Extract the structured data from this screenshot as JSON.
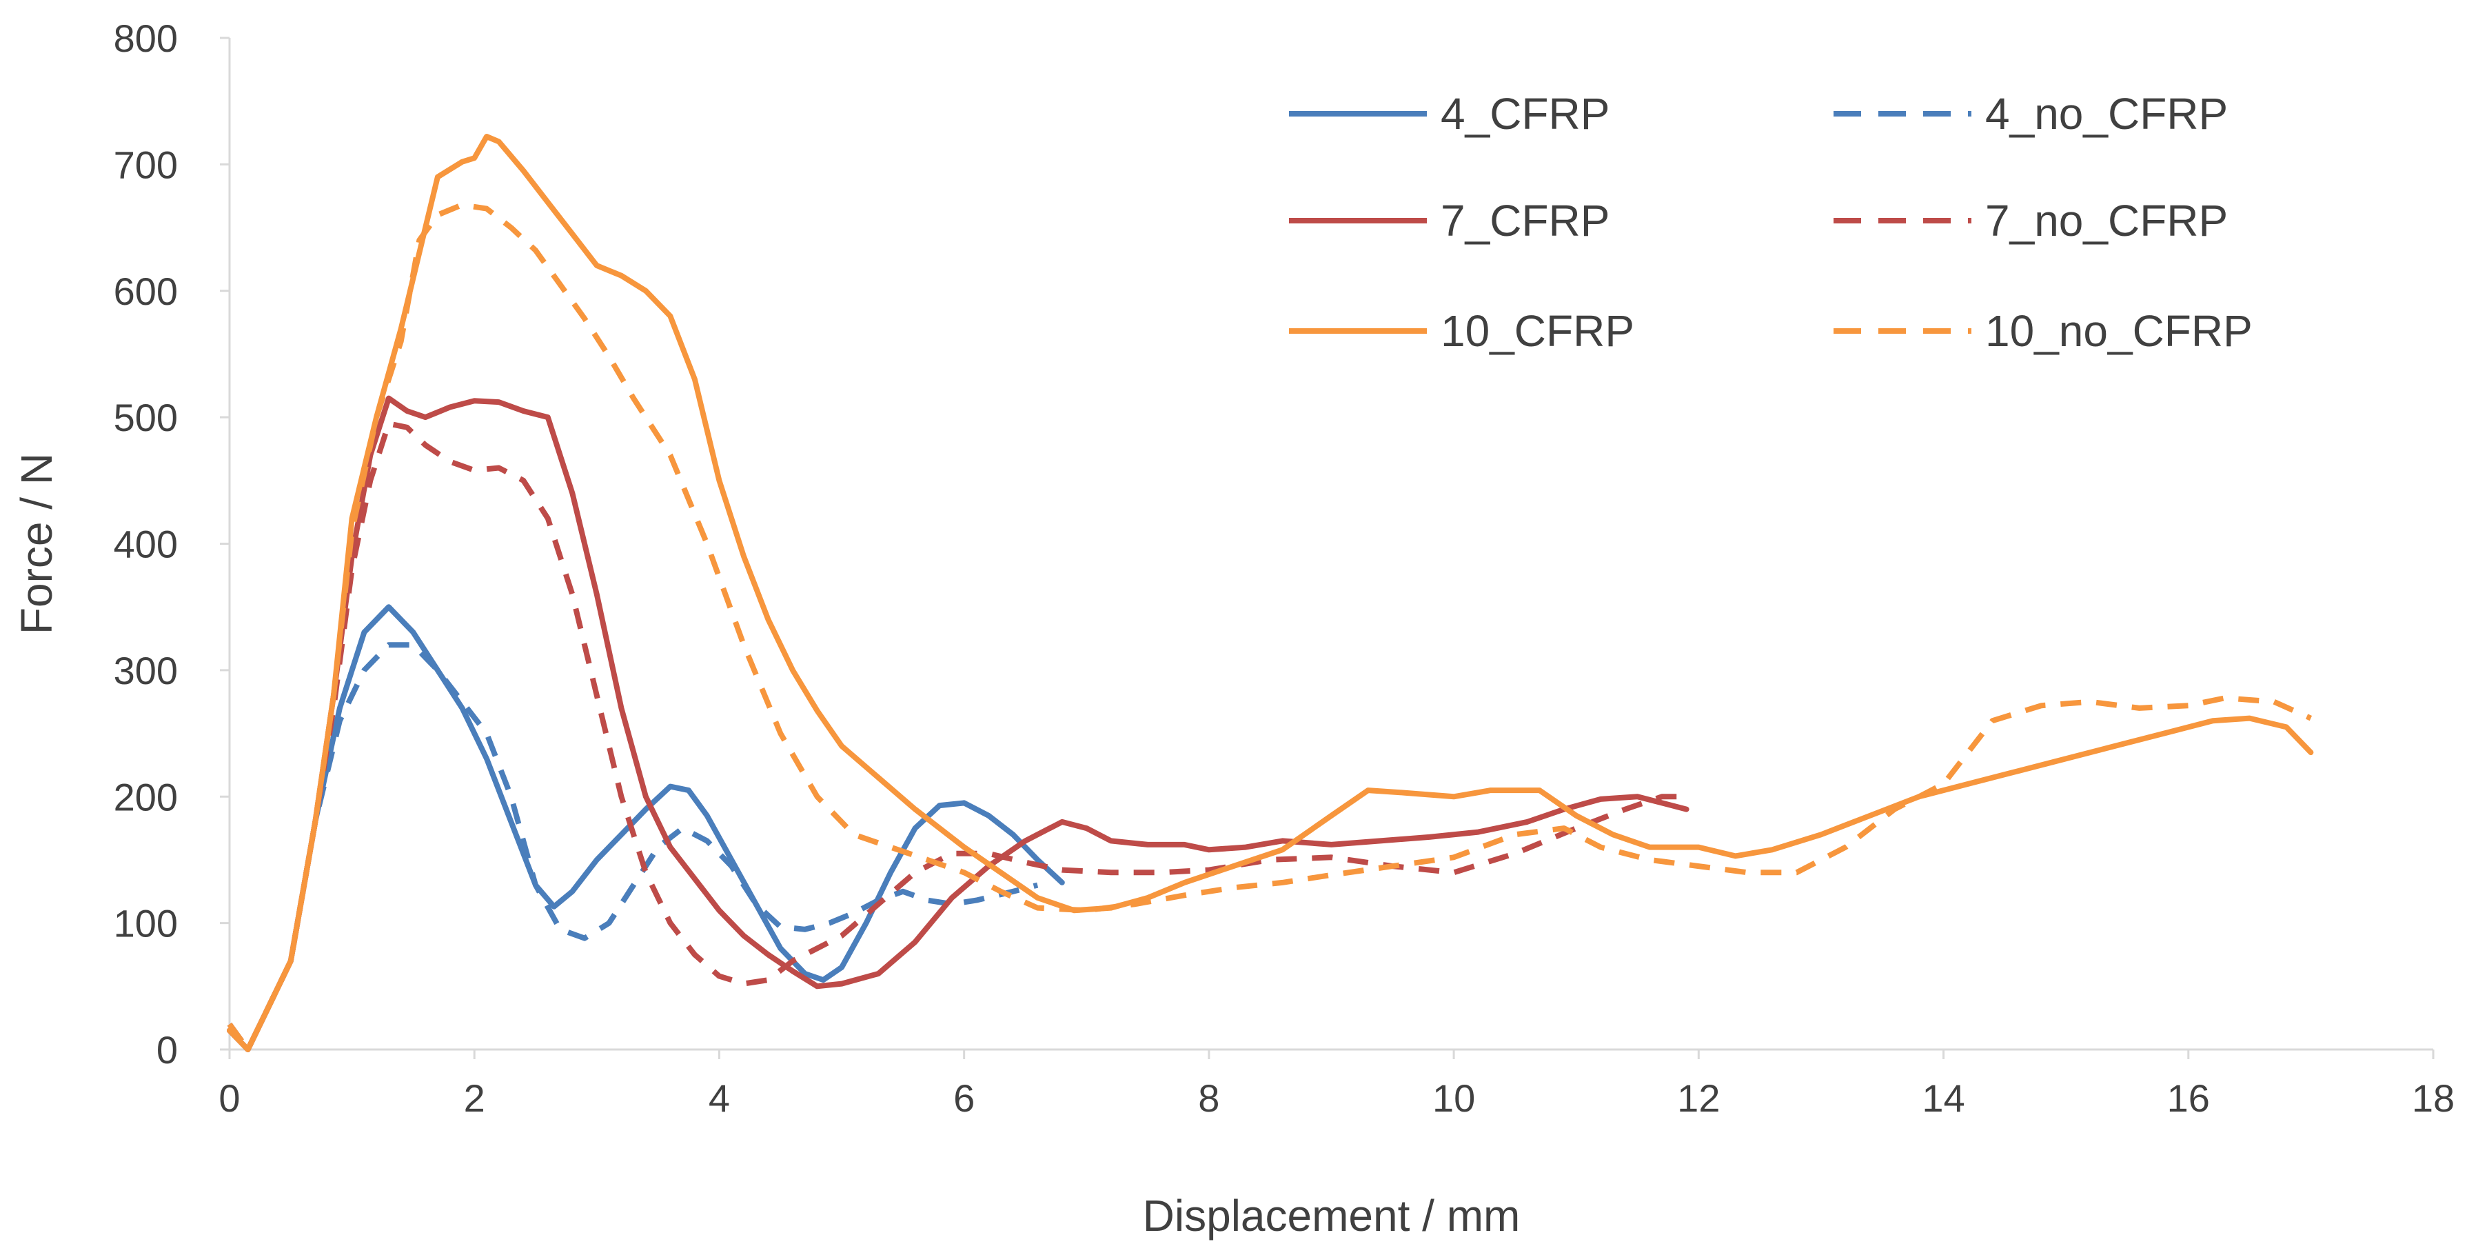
{
  "chart_data": {
    "type": "line",
    "title": "",
    "xlabel": "Displacement / mm",
    "ylabel": "Force / N",
    "xlim": [
      0,
      18
    ],
    "ylim": [
      0,
      800
    ],
    "x_ticks": [
      0,
      2,
      4,
      6,
      8,
      10,
      12,
      14,
      16,
      18
    ],
    "y_ticks": [
      0,
      100,
      200,
      300,
      400,
      500,
      600,
      700,
      800
    ],
    "grid": false,
    "legend_position": "top-right",
    "legend_columns": 2,
    "series": [
      {
        "name": "4_CFRP",
        "color": "#4a7ebb",
        "dash": "solid",
        "points": [
          [
            0,
            15
          ],
          [
            0.15,
            0
          ],
          [
            0.3,
            30
          ],
          [
            0.5,
            70
          ],
          [
            0.7,
            180
          ],
          [
            0.9,
            270
          ],
          [
            1.1,
            330
          ],
          [
            1.3,
            350
          ],
          [
            1.5,
            330
          ],
          [
            1.7,
            300
          ],
          [
            1.9,
            270
          ],
          [
            2.1,
            230
          ],
          [
            2.3,
            180
          ],
          [
            2.5,
            130
          ],
          [
            2.65,
            113
          ],
          [
            2.8,
            125
          ],
          [
            3.0,
            150
          ],
          [
            3.2,
            170
          ],
          [
            3.4,
            190
          ],
          [
            3.6,
            208
          ],
          [
            3.75,
            205
          ],
          [
            3.9,
            185
          ],
          [
            4.1,
            150
          ],
          [
            4.3,
            115
          ],
          [
            4.5,
            80
          ],
          [
            4.7,
            60
          ],
          [
            4.85,
            55
          ],
          [
            5.0,
            65
          ],
          [
            5.2,
            100
          ],
          [
            5.4,
            140
          ],
          [
            5.6,
            175
          ],
          [
            5.8,
            193
          ],
          [
            6.0,
            195
          ],
          [
            6.2,
            185
          ],
          [
            6.4,
            170
          ],
          [
            6.6,
            150
          ],
          [
            6.8,
            132
          ]
        ]
      },
      {
        "name": "4_no_CFRP",
        "color": "#4a7ebb",
        "dash": "dashed",
        "points": [
          [
            0,
            20
          ],
          [
            0.15,
            0
          ],
          [
            0.3,
            30
          ],
          [
            0.5,
            70
          ],
          [
            0.7,
            180
          ],
          [
            0.9,
            260
          ],
          [
            1.1,
            300
          ],
          [
            1.3,
            320
          ],
          [
            1.5,
            320
          ],
          [
            1.7,
            300
          ],
          [
            1.9,
            275
          ],
          [
            2.1,
            250
          ],
          [
            2.3,
            200
          ],
          [
            2.5,
            130
          ],
          [
            2.7,
            95
          ],
          [
            2.9,
            88
          ],
          [
            3.1,
            100
          ],
          [
            3.3,
            130
          ],
          [
            3.5,
            160
          ],
          [
            3.7,
            175
          ],
          [
            3.9,
            165
          ],
          [
            4.1,
            145
          ],
          [
            4.3,
            115
          ],
          [
            4.5,
            97
          ],
          [
            4.7,
            95
          ],
          [
            4.9,
            100
          ],
          [
            5.1,
            108
          ],
          [
            5.3,
            118
          ],
          [
            5.5,
            125
          ],
          [
            5.7,
            118
          ],
          [
            5.9,
            115
          ],
          [
            6.1,
            118
          ],
          [
            6.4,
            125
          ],
          [
            6.6,
            130
          ]
        ]
      },
      {
        "name": "7_CFRP",
        "color": "#be4b48",
        "dash": "solid",
        "points": [
          [
            0,
            15
          ],
          [
            0.15,
            0
          ],
          [
            0.3,
            30
          ],
          [
            0.5,
            70
          ],
          [
            0.7,
            180
          ],
          [
            0.85,
            280
          ],
          [
            1.0,
            390
          ],
          [
            1.15,
            470
          ],
          [
            1.3,
            515
          ],
          [
            1.45,
            505
          ],
          [
            1.6,
            500
          ],
          [
            1.8,
            508
          ],
          [
            2.0,
            513
          ],
          [
            2.2,
            512
          ],
          [
            2.4,
            505
          ],
          [
            2.6,
            500
          ],
          [
            2.8,
            440
          ],
          [
            3.0,
            360
          ],
          [
            3.2,
            270
          ],
          [
            3.4,
            200
          ],
          [
            3.6,
            160
          ],
          [
            3.8,
            135
          ],
          [
            4.0,
            110
          ],
          [
            4.2,
            90
          ],
          [
            4.4,
            75
          ],
          [
            4.6,
            62
          ],
          [
            4.8,
            50
          ],
          [
            5.0,
            52
          ],
          [
            5.3,
            60
          ],
          [
            5.6,
            85
          ],
          [
            5.9,
            120
          ],
          [
            6.2,
            145
          ],
          [
            6.5,
            165
          ],
          [
            6.8,
            180
          ],
          [
            7.0,
            175
          ],
          [
            7.2,
            165
          ],
          [
            7.5,
            162
          ],
          [
            7.8,
            162
          ],
          [
            8.0,
            158
          ],
          [
            8.3,
            160
          ],
          [
            8.6,
            165
          ],
          [
            9.0,
            162
          ],
          [
            9.4,
            165
          ],
          [
            9.8,
            168
          ],
          [
            10.2,
            172
          ],
          [
            10.6,
            180
          ],
          [
            10.9,
            190
          ],
          [
            11.2,
            198
          ],
          [
            11.5,
            200
          ],
          [
            11.7,
            195
          ],
          [
            11.9,
            190
          ]
        ]
      },
      {
        "name": "7_no_CFRP",
        "color": "#be4b48",
        "dash": "dashed",
        "points": [
          [
            0,
            20
          ],
          [
            0.15,
            0
          ],
          [
            0.3,
            30
          ],
          [
            0.5,
            70
          ],
          [
            0.7,
            180
          ],
          [
            0.85,
            270
          ],
          [
            1.0,
            380
          ],
          [
            1.15,
            450
          ],
          [
            1.3,
            495
          ],
          [
            1.45,
            492
          ],
          [
            1.6,
            478
          ],
          [
            1.8,
            465
          ],
          [
            2.0,
            458
          ],
          [
            2.2,
            460
          ],
          [
            2.4,
            450
          ],
          [
            2.6,
            420
          ],
          [
            2.8,
            360
          ],
          [
            3.0,
            280
          ],
          [
            3.2,
            200
          ],
          [
            3.4,
            140
          ],
          [
            3.6,
            100
          ],
          [
            3.8,
            75
          ],
          [
            4.0,
            58
          ],
          [
            4.2,
            52
          ],
          [
            4.4,
            55
          ],
          [
            4.6,
            70
          ],
          [
            4.8,
            80
          ],
          [
            5.0,
            90
          ],
          [
            5.3,
            115
          ],
          [
            5.6,
            140
          ],
          [
            5.9,
            155
          ],
          [
            6.2,
            155
          ],
          [
            6.5,
            148
          ],
          [
            6.8,
            142
          ],
          [
            7.2,
            140
          ],
          [
            7.6,
            140
          ],
          [
            8.0,
            142
          ],
          [
            8.5,
            150
          ],
          [
            9.0,
            152
          ],
          [
            9.5,
            145
          ],
          [
            10.0,
            140
          ],
          [
            10.5,
            155
          ],
          [
            11.0,
            175
          ],
          [
            11.4,
            190
          ],
          [
            11.7,
            200
          ],
          [
            11.9,
            200
          ]
        ]
      },
      {
        "name": "10_CFRP",
        "color": "#f7963d",
        "dash": "solid",
        "points": [
          [
            0,
            15
          ],
          [
            0.15,
            0
          ],
          [
            0.3,
            30
          ],
          [
            0.5,
            70
          ],
          [
            0.7,
            180
          ],
          [
            0.85,
            280
          ],
          [
            1.0,
            420
          ],
          [
            1.2,
            500
          ],
          [
            1.4,
            570
          ],
          [
            1.55,
            630
          ],
          [
            1.7,
            690
          ],
          [
            1.9,
            702
          ],
          [
            2.0,
            705
          ],
          [
            2.1,
            722
          ],
          [
            2.2,
            718
          ],
          [
            2.4,
            695
          ],
          [
            2.6,
            670
          ],
          [
            2.8,
            645
          ],
          [
            3.0,
            620
          ],
          [
            3.2,
            612
          ],
          [
            3.4,
            600
          ],
          [
            3.6,
            580
          ],
          [
            3.8,
            530
          ],
          [
            4.0,
            450
          ],
          [
            4.2,
            390
          ],
          [
            4.4,
            340
          ],
          [
            4.6,
            300
          ],
          [
            4.8,
            268
          ],
          [
            5.0,
            240
          ],
          [
            5.3,
            215
          ],
          [
            5.6,
            190
          ],
          [
            6.0,
            160
          ],
          [
            6.3,
            140
          ],
          [
            6.6,
            120
          ],
          [
            6.9,
            110
          ],
          [
            7.2,
            112
          ],
          [
            7.5,
            120
          ],
          [
            7.8,
            132
          ],
          [
            8.2,
            145
          ],
          [
            8.6,
            158
          ],
          [
            9.0,
            185
          ],
          [
            9.3,
            205
          ],
          [
            9.6,
            203
          ],
          [
            10.0,
            200
          ],
          [
            10.3,
            205
          ],
          [
            10.7,
            205
          ],
          [
            11.0,
            185
          ],
          [
            11.3,
            170
          ],
          [
            11.6,
            160
          ],
          [
            12.0,
            160
          ],
          [
            12.3,
            153
          ],
          [
            12.6,
            158
          ],
          [
            13.0,
            170
          ],
          [
            13.4,
            185
          ],
          [
            13.8,
            200
          ],
          [
            14.2,
            210
          ],
          [
            14.6,
            220
          ],
          [
            15.0,
            230
          ],
          [
            15.4,
            240
          ],
          [
            15.8,
            250
          ],
          [
            16.2,
            260
          ],
          [
            16.5,
            262
          ],
          [
            16.8,
            255
          ],
          [
            17.0,
            235
          ]
        ]
      },
      {
        "name": "10_no_CFRP",
        "color": "#f7963d",
        "dash": "dashed",
        "points": [
          [
            0,
            20
          ],
          [
            0.15,
            0
          ],
          [
            0.3,
            30
          ],
          [
            0.5,
            70
          ],
          [
            0.7,
            180
          ],
          [
            0.85,
            280
          ],
          [
            1.0,
            410
          ],
          [
            1.2,
            500
          ],
          [
            1.4,
            560
          ],
          [
            1.55,
            640
          ],
          [
            1.7,
            660
          ],
          [
            1.9,
            668
          ],
          [
            2.1,
            665
          ],
          [
            2.3,
            650
          ],
          [
            2.5,
            632
          ],
          [
            2.7,
            605
          ],
          [
            2.9,
            578
          ],
          [
            3.1,
            548
          ],
          [
            3.3,
            515
          ],
          [
            3.6,
            470
          ],
          [
            3.9,
            400
          ],
          [
            4.2,
            320
          ],
          [
            4.5,
            250
          ],
          [
            4.8,
            200
          ],
          [
            5.1,
            170
          ],
          [
            5.4,
            160
          ],
          [
            5.7,
            150
          ],
          [
            6.0,
            140
          ],
          [
            6.3,
            125
          ],
          [
            6.6,
            112
          ],
          [
            7.0,
            110
          ],
          [
            7.4,
            115
          ],
          [
            7.8,
            122
          ],
          [
            8.2,
            128
          ],
          [
            8.6,
            132
          ],
          [
            9.0,
            138
          ],
          [
            9.5,
            145
          ],
          [
            10.0,
            152
          ],
          [
            10.5,
            170
          ],
          [
            10.9,
            175
          ],
          [
            11.2,
            160
          ],
          [
            11.6,
            150
          ],
          [
            12.0,
            145
          ],
          [
            12.4,
            140
          ],
          [
            12.8,
            140
          ],
          [
            13.2,
            160
          ],
          [
            13.6,
            190
          ],
          [
            14.0,
            210
          ],
          [
            14.4,
            260
          ],
          [
            14.8,
            272
          ],
          [
            15.2,
            275
          ],
          [
            15.6,
            270
          ],
          [
            16.0,
            272
          ],
          [
            16.3,
            278
          ],
          [
            16.7,
            275
          ],
          [
            17.0,
            262
          ]
        ]
      }
    ]
  }
}
